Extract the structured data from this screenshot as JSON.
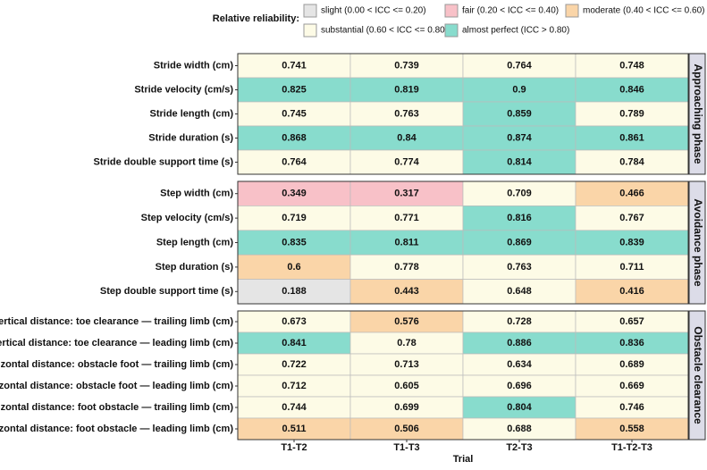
{
  "chart_data": {
    "type": "heatmap",
    "x_label": "Trial",
    "categories": [
      "T1-T2",
      "T1-T3",
      "T2-T3",
      "T1-T2-T3"
    ],
    "legend": {
      "title": "Relative reliability:",
      "items": [
        {
          "label": "slight (0.00 < ICC <= 0.20)",
          "color": "#e5e5e5",
          "min": 0
        },
        {
          "label": "fair (0.20 < ICC <= 0.40)",
          "color": "#f8c1c8",
          "min": 0.2
        },
        {
          "label": "moderate (0.40 < ICC <= 0.60)",
          "color": "#fad5a8",
          "min": 0.4
        },
        {
          "label": "substantial (0.60 < ICC <= 0.80)",
          "color": "#fdfbe6",
          "min": 0.6
        },
        {
          "label": "almost perfect (ICC > 0.80)",
          "color": "#88dccd",
          "min": 0.8
        }
      ]
    },
    "facets": [
      {
        "label": "Approaching phase",
        "rows": [
          "Stride width (cm)",
          "Stride velocity (cm/s)",
          "Stride length (cm)",
          "Stride duration (s)",
          "Stride double support time (s)"
        ],
        "values": [
          [
            0.741,
            0.739,
            0.764,
            0.748
          ],
          [
            0.825,
            0.819,
            0.9,
            0.846
          ],
          [
            0.745,
            0.763,
            0.859,
            0.789
          ],
          [
            0.868,
            0.84,
            0.874,
            0.861
          ],
          [
            0.764,
            0.774,
            0.814,
            0.784
          ]
        ]
      },
      {
        "label": "Avoidance phase",
        "rows": [
          "Step width (cm)",
          "Step velocity (cm/s)",
          "Step length (cm)",
          "Step duration (s)",
          "Step double support time (s)"
        ],
        "values": [
          [
            0.349,
            0.317,
            0.709,
            0.466
          ],
          [
            0.719,
            0.771,
            0.816,
            0.767
          ],
          [
            0.835,
            0.811,
            0.869,
            0.839
          ],
          [
            0.6,
            0.778,
            0.763,
            0.711
          ],
          [
            0.188,
            0.443,
            0.648,
            0.416
          ]
        ]
      },
      {
        "label": "Obstacle clearance",
        "rows": [
          "Vertical distance: toe clearance — trailing limb (cm)",
          "Vertical distance: toe clearance — leading limb (cm)",
          "Horizontal distance: obstacle foot — trailing limb (cm)",
          "Horizontal distance: obstacle foot — leading limb (cm)",
          "Horizontal distance: foot obstacle — trailing limb (cm)",
          "Horizontal distance: foot obstacle — leading limb (cm)"
        ],
        "values": [
          [
            0.673,
            0.576,
            0.728,
            0.657
          ],
          [
            0.841,
            0.78,
            0.886,
            0.836
          ],
          [
            0.722,
            0.713,
            0.634,
            0.689
          ],
          [
            0.712,
            0.605,
            0.696,
            0.669
          ],
          [
            0.744,
            0.699,
            0.804,
            0.746
          ],
          [
            0.511,
            0.506,
            0.688,
            0.558
          ]
        ]
      }
    ]
  }
}
